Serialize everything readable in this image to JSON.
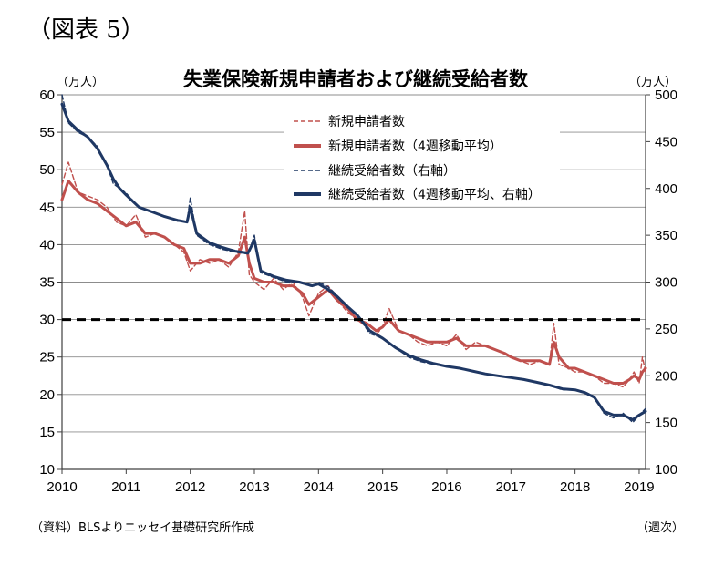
{
  "figure_label": "（図表 5）",
  "source_note": "（資料）BLSよりニッセイ基礎研究所作成",
  "unit_note": "（週次）",
  "chart_data": {
    "type": "line",
    "title": "失業保険新規申請者および継続受給者数",
    "y_left_unit": "（万人）",
    "y_right_unit": "（万人）",
    "x_ticks": [
      "2010",
      "2011",
      "2012",
      "2013",
      "2014",
      "2015",
      "2016",
      "2017",
      "2018",
      "2019"
    ],
    "y_left_ticks": [
      "10",
      "15",
      "20",
      "25",
      "30",
      "35",
      "40",
      "45",
      "50",
      "55",
      "60"
    ],
    "y_right_ticks": [
      "100",
      "150",
      "200",
      "250",
      "300",
      "350",
      "400",
      "450",
      "500"
    ],
    "x_range": [
      2010.0,
      2019.1
    ],
    "y_left_range": [
      10,
      60
    ],
    "y_right_range": [
      100,
      500
    ],
    "reference_line": {
      "axis": "left",
      "value": 30,
      "style": "dashed"
    },
    "grid": true,
    "legend_position": "top-center",
    "series": [
      {
        "name": "新規申請者数",
        "axis": "left",
        "style": "dashed",
        "color": "#c0504d",
        "x": [
          2010.0,
          2010.1,
          2010.25,
          2010.4,
          2010.55,
          2010.7,
          2010.85,
          2011.0,
          2011.15,
          2011.3,
          2011.45,
          2011.6,
          2011.75,
          2011.9,
          2012.0,
          2012.15,
          2012.3,
          2012.45,
          2012.6,
          2012.75,
          2012.85,
          2012.92,
          2013.0,
          2013.15,
          2013.3,
          2013.45,
          2013.6,
          2013.75,
          2013.85,
          2014.0,
          2014.15,
          2014.3,
          2014.45,
          2014.6,
          2014.75,
          2014.9,
          2015.0,
          2015.1,
          2015.25,
          2015.4,
          2015.55,
          2015.7,
          2015.85,
          2016.0,
          2016.15,
          2016.3,
          2016.45,
          2016.6,
          2016.75,
          2016.9,
          2017.0,
          2017.15,
          2017.3,
          2017.45,
          2017.6,
          2017.67,
          2017.75,
          2017.9,
          2018.0,
          2018.15,
          2018.3,
          2018.45,
          2018.6,
          2018.75,
          2018.85,
          2018.92,
          2019.0,
          2019.05,
          2019.1
        ],
        "y": [
          48,
          51,
          47,
          46.5,
          46,
          45,
          43,
          42.5,
          44,
          41,
          41.5,
          41,
          40,
          39,
          36.5,
          38,
          37.5,
          38,
          37,
          39,
          44.5,
          36,
          35,
          34,
          35.5,
          34,
          35,
          33,
          30.5,
          33.5,
          34.5,
          32.5,
          31,
          30,
          29,
          28,
          29,
          31.5,
          28.5,
          28,
          27,
          26.5,
          27,
          26.5,
          28,
          26,
          27,
          26.5,
          26,
          25.5,
          25,
          24.5,
          24,
          24.5,
          24,
          29.5,
          24,
          23.5,
          23,
          23,
          22.5,
          21.5,
          21.5,
          21,
          22,
          23,
          21.5,
          25,
          23
        ]
      },
      {
        "name": "新規申請者数（4週移動平均）",
        "axis": "left",
        "style": "solid-thick",
        "color": "#c0504d",
        "x": [
          2010.0,
          2010.1,
          2010.25,
          2010.4,
          2010.55,
          2010.7,
          2010.85,
          2011.0,
          2011.15,
          2011.3,
          2011.45,
          2011.6,
          2011.75,
          2011.9,
          2012.0,
          2012.15,
          2012.3,
          2012.45,
          2012.6,
          2012.75,
          2012.85,
          2012.92,
          2013.0,
          2013.15,
          2013.3,
          2013.45,
          2013.6,
          2013.75,
          2013.85,
          2014.0,
          2014.15,
          2014.3,
          2014.45,
          2014.6,
          2014.75,
          2014.9,
          2015.0,
          2015.1,
          2015.25,
          2015.4,
          2015.55,
          2015.7,
          2015.85,
          2016.0,
          2016.15,
          2016.3,
          2016.45,
          2016.6,
          2016.75,
          2016.9,
          2017.0,
          2017.15,
          2017.3,
          2017.45,
          2017.6,
          2017.67,
          2017.75,
          2017.9,
          2018.0,
          2018.15,
          2018.3,
          2018.45,
          2018.6,
          2018.75,
          2018.85,
          2018.92,
          2019.0,
          2019.05,
          2019.1
        ],
        "y": [
          46,
          48.5,
          47,
          46,
          45.5,
          44.5,
          43.5,
          42.5,
          43,
          41.5,
          41.5,
          41,
          40,
          39.5,
          37.5,
          37.5,
          38,
          38,
          37.5,
          38.5,
          41,
          37.5,
          35.5,
          35,
          35,
          34.5,
          34.5,
          33.5,
          32,
          33,
          34,
          32.5,
          31.5,
          30,
          29.5,
          28.5,
          29,
          30,
          28.5,
          28,
          27.5,
          27,
          27,
          27,
          27.5,
          26.5,
          26.5,
          26.5,
          26,
          25.5,
          25,
          24.5,
          24.5,
          24.5,
          24,
          27,
          25,
          23.5,
          23.5,
          23,
          22.5,
          22,
          21.5,
          21.5,
          22,
          22.5,
          22,
          23,
          23.5
        ]
      },
      {
        "name": "継続受給者数（右軸）",
        "axis": "right",
        "style": "dashed",
        "color": "#1f3864",
        "x": [
          2010.0,
          2010.1,
          2010.25,
          2010.4,
          2010.55,
          2010.7,
          2010.8,
          2010.9,
          2011.0,
          2011.2,
          2011.4,
          2011.6,
          2011.8,
          2011.95,
          2012.0,
          2012.1,
          2012.3,
          2012.5,
          2012.7,
          2012.9,
          2013.0,
          2013.1,
          2013.3,
          2013.5,
          2013.7,
          2013.9,
          2014.0,
          2014.15,
          2014.3,
          2014.45,
          2014.6,
          2014.8,
          2015.0,
          2015.2,
          2015.4,
          2015.6,
          2015.8,
          2016.0,
          2016.2,
          2016.4,
          2016.6,
          2016.8,
          2017.0,
          2017.2,
          2017.4,
          2017.6,
          2017.8,
          2018.0,
          2018.15,
          2018.3,
          2018.45,
          2018.6,
          2018.75,
          2018.9,
          2019.0,
          2019.1
        ],
        "y": [
          500,
          470,
          460,
          455,
          445,
          425,
          405,
          400,
          395,
          380,
          375,
          370,
          365,
          365,
          390,
          350,
          340,
          335,
          332,
          330,
          350,
          310,
          305,
          300,
          300,
          295,
          300,
          295,
          285,
          275,
          265,
          245,
          240,
          230,
          220,
          215,
          212,
          210,
          208,
          205,
          202,
          200,
          198,
          196,
          193,
          190,
          185,
          185,
          183,
          178,
          160,
          155,
          160,
          150,
          158,
          165
        ]
      },
      {
        "name": "継続受給者数（4週移動平均、右軸）",
        "axis": "right",
        "style": "solid-thick",
        "color": "#1f3864",
        "x": [
          2010.0,
          2010.1,
          2010.25,
          2010.4,
          2010.55,
          2010.7,
          2010.8,
          2010.9,
          2011.0,
          2011.2,
          2011.4,
          2011.6,
          2011.8,
          2011.95,
          2012.0,
          2012.1,
          2012.3,
          2012.5,
          2012.7,
          2012.9,
          2013.0,
          2013.1,
          2013.3,
          2013.5,
          2013.7,
          2013.9,
          2014.0,
          2014.15,
          2014.3,
          2014.45,
          2014.6,
          2014.8,
          2015.0,
          2015.2,
          2015.4,
          2015.6,
          2015.8,
          2016.0,
          2016.2,
          2016.4,
          2016.6,
          2016.8,
          2017.0,
          2017.2,
          2017.4,
          2017.6,
          2017.8,
          2018.0,
          2018.15,
          2018.3,
          2018.45,
          2018.6,
          2018.75,
          2018.9,
          2019.0,
          2019.1
        ],
        "y": [
          490,
          472,
          462,
          455,
          443,
          425,
          410,
          400,
          393,
          380,
          375,
          370,
          366,
          364,
          380,
          352,
          342,
          337,
          333,
          331,
          345,
          312,
          306,
          302,
          300,
          296,
          298,
          292,
          284,
          274,
          265,
          248,
          240,
          230,
          222,
          217,
          213,
          210,
          208,
          205,
          202,
          200,
          198,
          196,
          193,
          190,
          186,
          185,
          182,
          177,
          162,
          158,
          158,
          153,
          158,
          162
        ]
      }
    ]
  }
}
